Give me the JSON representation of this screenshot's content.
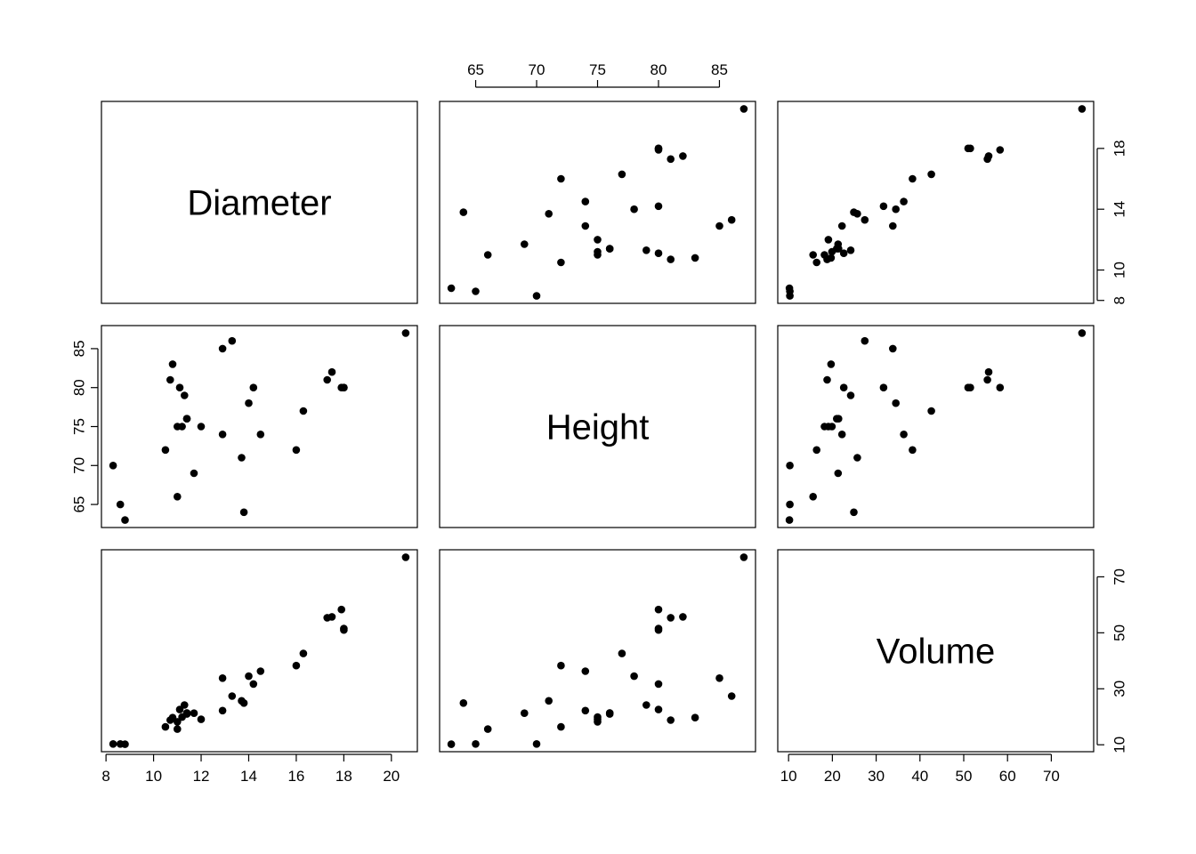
{
  "chart_data": {
    "type": "scatter",
    "variables": [
      "Diameter",
      "Height",
      "Volume"
    ],
    "ranges": {
      "Diameter": [
        8.3,
        20.6
      ],
      "Height": [
        63,
        87
      ],
      "Volume": [
        10.2,
        77.0
      ]
    },
    "ticks": {
      "Diameter": {
        "bottom": [
          8,
          10,
          12,
          14,
          16,
          18,
          20
        ],
        "right": [
          8,
          10,
          14,
          18
        ]
      },
      "Height": {
        "top": [
          65,
          70,
          75,
          80,
          85
        ],
        "left": [
          65,
          70,
          75,
          80,
          85
        ]
      },
      "Volume": {
        "bottom": [
          10,
          20,
          30,
          40,
          50,
          60,
          70
        ],
        "right": [
          10,
          30,
          50,
          70
        ]
      }
    },
    "data": {
      "Diameter": [
        8.3,
        8.6,
        8.8,
        10.5,
        10.7,
        10.8,
        11.0,
        11.0,
        11.1,
        11.2,
        11.3,
        11.4,
        11.4,
        11.7,
        12.0,
        12.9,
        12.9,
        13.3,
        13.7,
        13.8,
        14.0,
        14.2,
        14.5,
        16.0,
        16.3,
        17.3,
        17.5,
        17.9,
        18.0,
        18.0,
        20.6
      ],
      "Height": [
        70,
        65,
        63,
        72,
        81,
        83,
        66,
        75,
        80,
        75,
        79,
        76,
        76,
        69,
        75,
        74,
        85,
        86,
        71,
        64,
        78,
        80,
        74,
        72,
        77,
        81,
        82,
        80,
        80,
        80,
        87
      ],
      "Volume": [
        10.3,
        10.3,
        10.2,
        16.4,
        18.8,
        19.7,
        15.6,
        18.2,
        22.6,
        19.9,
        24.2,
        21.0,
        21.4,
        21.3,
        19.1,
        22.2,
        33.8,
        27.4,
        25.7,
        24.9,
        34.5,
        31.7,
        36.3,
        38.3,
        42.6,
        55.4,
        55.7,
        58.3,
        51.5,
        51.0,
        77.0
      ]
    },
    "title": "",
    "grid": false,
    "legend": "none"
  }
}
